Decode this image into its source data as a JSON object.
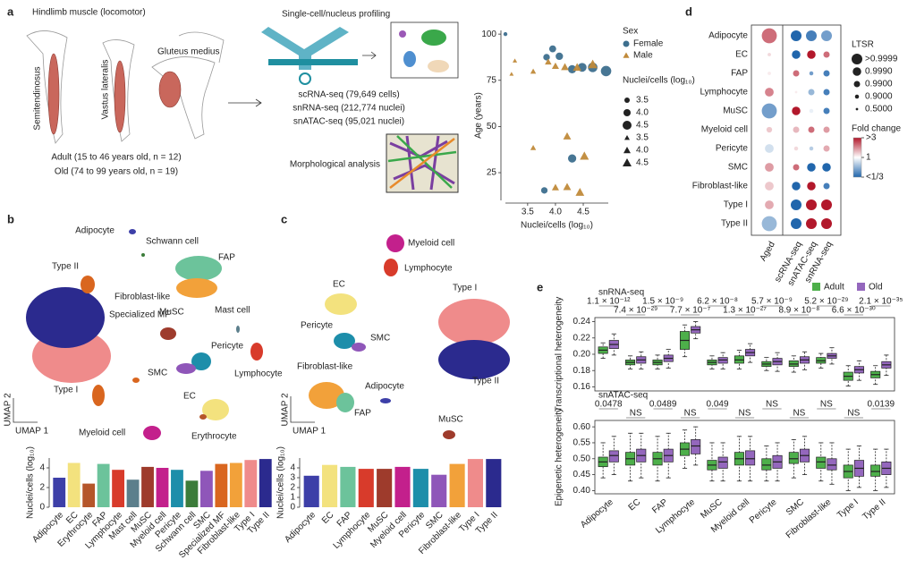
{
  "panel_labels": [
    "a",
    "b",
    "c",
    "d",
    "e"
  ],
  "panel_a": {
    "muscle_title": "Hindlimb muscle (locomotor)",
    "muscles": [
      "Semitendinosus",
      "Vastus lateralis",
      "Gluteus medius"
    ],
    "cohorts": [
      "Adult (15 to 46 years old, n = 12)",
      "Old (74 to 99 years old, n = 19)"
    ],
    "profiling_title": "Single-cell/nucleus profiling",
    "assays": [
      "scRNA-seq (79,649 cells)",
      "snRNA-seq (212,774 nuclei)",
      "snATAC-seq (95,021 nuclei)"
    ],
    "morphology": "Morphological analysis"
  },
  "umap_b": {
    "labels": [
      "Adipocyte",
      "Schwann cell",
      "FAP",
      "Fibroblast-like",
      "Type II",
      "Specialized MF",
      "MuSC",
      "Mast cell",
      "Pericyte",
      "SMC",
      "Lymphocyte",
      "Type I",
      "EC",
      "Erythrocyte",
      "Myeloid cell"
    ],
    "x_axis": "UMAP 1",
    "y_axis": "UMAP 2"
  },
  "umap_c": {
    "labels": [
      "Myeloid cell",
      "Lymphocyte",
      "EC",
      "Type I",
      "Pericyte",
      "SMC",
      "Fibroblast-like",
      "Adipocyte",
      "FAP",
      "Type II",
      "MuSC"
    ],
    "x_axis": "UMAP 1",
    "y_axis": "UMAP 2"
  },
  "chart_data": [
    {
      "type": "scatter",
      "xlabel": "Nuclei/cells (log₁₀)",
      "ylabel": "Age (years)",
      "xlim": [
        3.1,
        4.95
      ],
      "ylim": [
        10,
        102
      ],
      "xticks": [
        3.5,
        {
          "value": 4,
          "label": "4.0"
        },
        4.5
      ],
      "yticks": [
        25,
        50,
        75,
        100
      ],
      "legend_title": "Sex",
      "size_title": "Nuclei/cells (log₁₀)",
      "size_ticks": [
        3.5,
        {
          "value": 4,
          "label": "4.0"
        },
        4.5
      ],
      "series": [
        {
          "name": "Female",
          "color": "#3d6f8e",
          "marker": "circle",
          "x": [
            3.1,
            3.95,
            3.84,
            4.07,
            4.3,
            4.48,
            4.91,
            4.67,
            4.3,
            3.8
          ],
          "values": [
            100,
            92,
            87.5,
            88,
            81,
            82,
            80,
            82,
            32.7,
            15.4
          ]
        },
        {
          "name": "Male",
          "color": "#c08a3a",
          "marker": "triangle",
          "x": [
            3.27,
            3.21,
            3.6,
            3.87,
            4.0,
            4.17,
            4.39,
            4.67,
            3.6,
            4.21,
            4.52,
            4.21,
            4.44,
            4.0
          ],
          "values": [
            85.6,
            78.4,
            79.8,
            85,
            82.7,
            82.2,
            82,
            83.6,
            38.5,
            44.7,
            34,
            17.3,
            14.4,
            17
          ]
        }
      ]
    },
    {
      "type": "bar",
      "ylabel": "Nuclei/cells (log₁₀)",
      "ylim": [
        0,
        5
      ],
      "yticks": [
        0,
        2,
        4
      ],
      "categories": [
        "Adipocyte",
        "EC",
        "Erythrocyte",
        "FAP",
        "Lymphocyte",
        "Mast cell",
        "MuSC",
        "Myeloid cell",
        "Pericyte",
        "Schwann cell",
        "SMC",
        "Specialized MF",
        "Fibroblast-like",
        "Type I",
        "Type II"
      ],
      "values": [
        3.0,
        4.5,
        2.4,
        4.4,
        3.8,
        2.8,
        4.1,
        4.0,
        3.8,
        2.7,
        3.7,
        4.4,
        4.5,
        4.8,
        4.9
      ],
      "colors": [
        "#3d3fa8",
        "#f3e27e",
        "#b5562a",
        "#6cc39b",
        "#d83b2b",
        "#5c7f8c",
        "#9e3b2c",
        "#c3208c",
        "#1d8eaa",
        "#3c7c3a",
        "#8f56b9",
        "#d9661f",
        "#f2a13a",
        "#ef8b8b",
        "#2b2a8e"
      ]
    },
    {
      "type": "bar",
      "ylabel": "Nuclei/cells (log₁₀)",
      "ylim": [
        0,
        5
      ],
      "yticks": [
        0,
        1,
        2,
        3,
        4
      ],
      "categories": [
        "Adipocyte",
        "EC",
        "FAP",
        "Lymphocyte",
        "MuSC",
        "Myeloid cell",
        "Pericyte",
        "SMC",
        "Fibroblast-like",
        "Type I",
        "Type II"
      ],
      "values": [
        3.2,
        4.3,
        4.1,
        3.9,
        3.9,
        4.1,
        3.9,
        3.3,
        4.4,
        4.9,
        4.9
      ],
      "colors": [
        "#3d3fa8",
        "#f3e27e",
        "#6cc39b",
        "#d83b2b",
        "#9e3b2c",
        "#c3208c",
        "#1d8eaa",
        "#8f56b9",
        "#f2a13a",
        "#ef8b8b",
        "#2b2a8e"
      ]
    },
    {
      "type": "dot",
      "rows": [
        "Adipocyte",
        "EC",
        "FAP",
        "Lymphocyte",
        "MuSC",
        "Myeloid cell",
        "Pericyte",
        "SMC",
        "Fibroblast-like",
        "Type I",
        "Type II"
      ],
      "columns": [
        "Aged",
        "scRNA-seq",
        "snATAC-seq",
        "snRNA-seq"
      ],
      "fold_change": [
        [
          2.0,
          0.25,
          0.4,
          0.5
        ],
        [
          1.2,
          0.3,
          3,
          2
        ],
        [
          1.1,
          2,
          0.5,
          0.4
        ],
        [
          1.8,
          1.1,
          0.6,
          0.4
        ],
        [
          0.5,
          3,
          0.9,
          0.4
        ],
        [
          1.3,
          1.4,
          2,
          1.6
        ],
        [
          0.8,
          1.2,
          0.7,
          1.5
        ],
        [
          1.6,
          2,
          0.3,
          0.3
        ],
        [
          1.3,
          0.3,
          3,
          0.4
        ],
        [
          1.5,
          0.25,
          3,
          3
        ],
        [
          0.6,
          0.25,
          3,
          3
        ]
      ],
      "ltsr": [
        [
          0.9999,
          0.9999,
          0.9999,
          0.9999
        ],
        [
          0.5,
          0.999,
          0.999,
          0.99
        ],
        [
          0.5,
          0.99,
          0.9,
          0.99
        ],
        [
          0.99,
          0.5,
          0.99,
          0.99
        ],
        [
          0.9999,
          0.999,
          0.9,
          0.99
        ],
        [
          0.9,
          0.99,
          0.99,
          0.99
        ],
        [
          0.99,
          0.9,
          0.9,
          0.99
        ],
        [
          0.99,
          0.99,
          0.999,
          0.999
        ],
        [
          0.99,
          0.999,
          0.999,
          0.99
        ],
        [
          0.99,
          0.9999,
          0.9999,
          0.9999
        ],
        [
          0.9999,
          0.9999,
          0.9999,
          0.9999
        ]
      ],
      "size_title": "LTSR",
      "size_ticks": [
        {
          "value": 0.9999,
          "label": ">0.9999"
        },
        {
          "value": 0.999,
          "label": "0.9990"
        },
        {
          "value": 0.99,
          "label": "0.9900"
        },
        {
          "value": 0.9,
          "label": "0.9000"
        },
        {
          "value": 0.5,
          "label": "0.5000"
        }
      ],
      "color_title": "Fold change",
      "color_ticks": [
        {
          "value": 3,
          "label": ">3"
        },
        1,
        {
          "value": 0.3333,
          "label": "<1/3"
        }
      ]
    },
    {
      "type": "box",
      "title": "snRNA-seq",
      "ylabel": "Transcriptional heterogeneity",
      "ylim": [
        0.155,
        0.245
      ],
      "yticks": [
        0.16,
        0.18,
        {
          "value": 0.2,
          "label": "0.20"
        },
        0.22,
        0.24
      ],
      "legend": "upper right",
      "annotations": [
        "1.1 × 10⁻¹²",
        "7.4 × 10⁻²⁹",
        "1.5 × 10⁻⁹",
        "7.7 × 10⁻⁷",
        "6.2 × 10⁻⁸",
        "1.3 × 10⁻²⁷",
        "5.7 × 10⁻⁹",
        "8.9 × 10⁻⁸",
        "5.2 × 10⁻²⁹",
        "6.6 × 10⁻³⁰",
        "2.1 × 10⁻³⁵"
      ],
      "series": [
        {
          "name": "Adult",
          "color": "#4daf4a",
          "low": [
            0.195,
            0.182,
            0.182,
            0.197,
            0.182,
            0.182,
            0.18,
            0.178,
            0.183,
            0.161,
            0.163
          ],
          "q1": [
            0.201,
            0.187,
            0.187,
            0.206,
            0.187,
            0.189,
            0.185,
            0.185,
            0.189,
            0.168,
            0.171
          ],
          "median": [
            0.205,
            0.19,
            0.19,
            0.217,
            0.19,
            0.193,
            0.188,
            0.188,
            0.192,
            0.173,
            0.175
          ],
          "q3": [
            0.209,
            0.193,
            0.193,
            0.228,
            0.193,
            0.198,
            0.191,
            0.192,
            0.196,
            0.178,
            0.179
          ],
          "high": [
            0.214,
            0.198,
            0.199,
            0.236,
            0.198,
            0.205,
            0.196,
            0.198,
            0.201,
            0.186,
            0.186
          ]
        },
        {
          "name": "Old",
          "color": "#9467bd",
          "low": [
            0.199,
            0.182,
            0.183,
            0.219,
            0.182,
            0.19,
            0.179,
            0.181,
            0.188,
            0.168,
            0.174
          ],
          "q1": [
            0.207,
            0.189,
            0.191,
            0.226,
            0.189,
            0.198,
            0.187,
            0.189,
            0.195,
            0.177,
            0.183
          ],
          "median": [
            0.212,
            0.193,
            0.195,
            0.23,
            0.193,
            0.202,
            0.191,
            0.193,
            0.198,
            0.181,
            0.187
          ],
          "q3": [
            0.217,
            0.197,
            0.199,
            0.234,
            0.196,
            0.206,
            0.195,
            0.197,
            0.201,
            0.185,
            0.191
          ],
          "high": [
            0.225,
            0.203,
            0.206,
            0.24,
            0.202,
            0.213,
            0.202,
            0.203,
            0.208,
            0.192,
            0.199
          ]
        }
      ]
    },
    {
      "type": "box",
      "title": "snATAC-seq",
      "ylabel": "Epigenetic heterogeneity",
      "ylim": [
        0.39,
        0.62
      ],
      "yticks": [
        {
          "value": 0.4,
          "label": "0.40"
        },
        0.45,
        {
          "value": 0.5,
          "label": "0.50"
        },
        0.55,
        {
          "value": 0.6,
          "label": "0.60"
        }
      ],
      "categories": [
        "Adipocyte",
        "EC",
        "FAP",
        "Lymphocyte",
        "MuSC",
        "Myeloid cell",
        "Pericyte",
        "SMC",
        "Fibroblast-like",
        "Type I",
        "Type II"
      ],
      "annotations": [
        "0.0478",
        "NS",
        "0.0489",
        "NS",
        "0.049",
        "NS",
        "NS",
        "NS",
        "NS",
        "NS",
        "0.0139"
      ],
      "series": [
        {
          "color": "#4daf4a",
          "low": [
            0.44,
            0.43,
            0.43,
            0.47,
            0.43,
            0.43,
            0.43,
            0.44,
            0.43,
            0.4,
            0.4
          ],
          "q1": [
            0.475,
            0.48,
            0.48,
            0.51,
            0.465,
            0.48,
            0.465,
            0.485,
            0.47,
            0.44,
            0.445
          ],
          "median": [
            0.49,
            0.5,
            0.5,
            0.53,
            0.48,
            0.5,
            0.48,
            0.5,
            0.49,
            0.46,
            0.46
          ],
          "q3": [
            0.505,
            0.52,
            0.52,
            0.55,
            0.495,
            0.52,
            0.5,
            0.52,
            0.505,
            0.48,
            0.48
          ],
          "high": [
            0.55,
            0.58,
            0.57,
            0.59,
            0.55,
            0.57,
            0.54,
            0.56,
            0.55,
            0.53,
            0.53
          ]
        },
        {
          "color": "#9467bd",
          "low": [
            0.45,
            0.44,
            0.44,
            0.48,
            0.43,
            0.43,
            0.43,
            0.45,
            0.42,
            0.41,
            0.41
          ],
          "q1": [
            0.49,
            0.49,
            0.49,
            0.515,
            0.47,
            0.48,
            0.47,
            0.49,
            0.465,
            0.445,
            0.45
          ],
          "median": [
            0.51,
            0.51,
            0.51,
            0.54,
            0.49,
            0.5,
            0.49,
            0.51,
            0.48,
            0.47,
            0.47
          ],
          "q3": [
            0.525,
            0.53,
            0.53,
            0.56,
            0.505,
            0.525,
            0.51,
            0.53,
            0.5,
            0.495,
            0.49
          ],
          "high": [
            0.57,
            0.58,
            0.58,
            0.6,
            0.55,
            0.57,
            0.55,
            0.57,
            0.55,
            0.54,
            0.53
          ]
        }
      ]
    }
  ]
}
